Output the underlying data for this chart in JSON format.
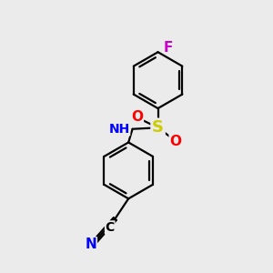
{
  "bg_color": "#ebebeb",
  "bond_color": "#000000",
  "atom_colors": {
    "N": "#0000ff",
    "S": "#cccc00",
    "O": "#ff0000",
    "F": "#cc00cc",
    "C": "#000000",
    "H": "#666666"
  },
  "figure_size": [
    3.0,
    3.0
  ],
  "dpi": 100
}
